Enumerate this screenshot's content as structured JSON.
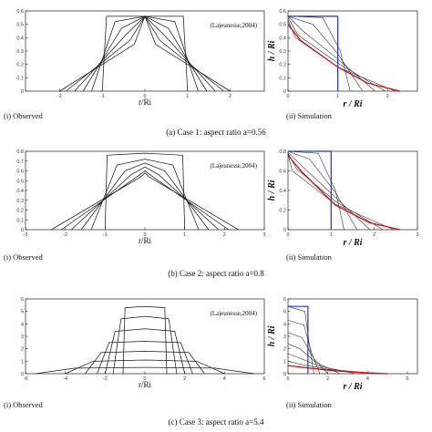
{
  "chart_data": [
    {
      "type": "line",
      "case": "case1",
      "panel": "observed",
      "xlabel": "r/Ri",
      "ylabel": "",
      "xlim": [
        -2.8,
        2.8
      ],
      "ylim": [
        0,
        0.6
      ],
      "xticks": [
        -2,
        -1,
        0,
        1,
        2
      ],
      "xticklabels": [
        "-2",
        "-1",
        "0",
        "1",
        "2"
      ],
      "yticks": [
        0,
        0.1,
        0.2,
        0.3,
        0.4,
        0.5,
        0.6
      ],
      "yticklabels": [
        "0",
        "0.1",
        "0.2",
        "0.3",
        "0.4",
        "0.5",
        "0.6"
      ],
      "annotation": "(Lajeunesse,2004)",
      "panel_label": "(i) Observed",
      "series": [
        {
          "x": [
            -1.0,
            -0.9,
            0,
            0.9,
            1.0
          ],
          "y": [
            0,
            0.56,
            0.56,
            0.56,
            0
          ]
        },
        {
          "x": [
            -1.25,
            -0.7,
            0,
            0.7,
            1.25
          ],
          "y": [
            0,
            0.52,
            0.56,
            0.52,
            0
          ]
        },
        {
          "x": [
            -1.45,
            -0.55,
            0,
            0.55,
            1.45
          ],
          "y": [
            0,
            0.47,
            0.56,
            0.47,
            0
          ]
        },
        {
          "x": [
            -1.65,
            -0.45,
            0,
            0.45,
            1.65
          ],
          "y": [
            0,
            0.42,
            0.56,
            0.42,
            0
          ]
        },
        {
          "x": [
            -1.85,
            -0.35,
            0,
            0.35,
            1.85
          ],
          "y": [
            0,
            0.38,
            0.56,
            0.38,
            0
          ]
        },
        {
          "x": [
            -2.0,
            -0.25,
            0,
            0.25,
            2.0
          ],
          "y": [
            0,
            0.35,
            0.56,
            0.35,
            0
          ]
        }
      ]
    },
    {
      "type": "line",
      "case": "case1",
      "panel": "simulation",
      "xlabel": "r / Ri",
      "ylabel": "h / Ri",
      "xlim": [
        0,
        2.6
      ],
      "ylim": [
        0,
        0.6
      ],
      "xticks": [
        0,
        1,
        2
      ],
      "xticklabels": [
        "0",
        "1",
        "2"
      ],
      "yticks": [
        0,
        0.1,
        0.2,
        0.3,
        0.4,
        0.5,
        0.6
      ],
      "yticklabels": [
        "0",
        "0.1",
        "0.2",
        "0.3",
        "0.4",
        "0.5",
        "0.6"
      ],
      "panel_label": "(ii) Simulation",
      "initial": {
        "x": [
          0,
          1,
          1
        ],
        "y": [
          0.56,
          0.56,
          0
        ]
      },
      "series": [
        {
          "x": [
            0,
            0.7,
            1.05,
            1.25
          ],
          "y": [
            0.56,
            0.55,
            0.3,
            0
          ]
        },
        {
          "x": [
            0,
            0.5,
            1.0,
            1.5
          ],
          "y": [
            0.56,
            0.5,
            0.28,
            0
          ]
        },
        {
          "x": [
            0,
            0.3,
            1.0,
            1.75
          ],
          "y": [
            0.56,
            0.45,
            0.24,
            0
          ]
        },
        {
          "x": [
            0,
            0.2,
            1.0,
            1.95
          ],
          "y": [
            0.55,
            0.42,
            0.21,
            0
          ]
        },
        {
          "x": [
            0,
            0.15,
            1.0,
            2.15
          ],
          "y": [
            0.53,
            0.4,
            0.18,
            0
          ]
        }
      ],
      "final": {
        "x": [
          0,
          0.25,
          1.0,
          1.6,
          2.25
        ],
        "y": [
          0.5,
          0.38,
          0.18,
          0.06,
          0
        ]
      }
    },
    {
      "type": "line",
      "case": "case2",
      "panel": "observed",
      "xlabel": "r/Ri",
      "ylabel": "",
      "xlim": [
        -3,
        3
      ],
      "ylim": [
        0,
        0.8
      ],
      "xticks": [
        -3,
        -2,
        -1,
        0,
        1,
        2,
        3
      ],
      "xticklabels": [
        "-3",
        "-2",
        "-1",
        "0",
        "1",
        "2",
        "3"
      ],
      "yticks": [
        0,
        0.1,
        0.2,
        0.3,
        0.4,
        0.5,
        0.6,
        0.7,
        0.8
      ],
      "yticklabels": [
        "0",
        "0.1",
        "0.2",
        "0.3",
        "0.4",
        "0.5",
        "0.6",
        "0.7",
        "0.8"
      ],
      "annotation": "(Lajeunesse,2004)",
      "panel_label": "(i) Observed",
      "series": [
        {
          "x": [
            -1.0,
            -0.95,
            0,
            0.95,
            1.0
          ],
          "y": [
            0,
            0.76,
            0.78,
            0.76,
            0
          ]
        },
        {
          "x": [
            -1.35,
            -0.7,
            0,
            0.7,
            1.35
          ],
          "y": [
            0,
            0.66,
            0.72,
            0.66,
            0
          ]
        },
        {
          "x": [
            -1.6,
            -0.5,
            0,
            0.5,
            1.6
          ],
          "y": [
            0,
            0.6,
            0.68,
            0.6,
            0
          ]
        },
        {
          "x": [
            -1.85,
            -0.35,
            0,
            0.35,
            1.85
          ],
          "y": [
            0,
            0.56,
            0.64,
            0.56,
            0
          ]
        },
        {
          "x": [
            -2.1,
            -0.2,
            0,
            0.2,
            2.1
          ],
          "y": [
            0,
            0.54,
            0.6,
            0.54,
            0
          ]
        },
        {
          "x": [
            -2.35,
            -0.1,
            0,
            0.1,
            2.35
          ],
          "y": [
            0,
            0.54,
            0.58,
            0.54,
            0
          ]
        }
      ]
    },
    {
      "type": "line",
      "case": "case2",
      "panel": "simulation",
      "xlabel": "r / Ri",
      "ylabel": "h / Ri",
      "xlim": [
        0,
        3
      ],
      "ylim": [
        0,
        0.8
      ],
      "xticks": [
        0,
        1,
        2,
        3
      ],
      "xticklabels": [
        "0",
        "1",
        "2",
        "3"
      ],
      "yticks": [
        0,
        0.2,
        0.4,
        0.6,
        0.8
      ],
      "yticklabels": [
        "0",
        "0.2",
        "0.4",
        "0.6",
        "0.8"
      ],
      "panel_label": "(ii) Simulation",
      "initial": {
        "x": [
          0,
          1,
          1
        ],
        "y": [
          0.8,
          0.8,
          0
        ]
      },
      "series": [
        {
          "x": [
            0,
            0.7,
            1.1,
            1.3
          ],
          "y": [
            0.8,
            0.78,
            0.4,
            0
          ]
        },
        {
          "x": [
            0,
            0.5,
            1.1,
            1.6
          ],
          "y": [
            0.8,
            0.72,
            0.38,
            0
          ]
        },
        {
          "x": [
            0,
            0.3,
            1.1,
            1.9
          ],
          "y": [
            0.79,
            0.66,
            0.33,
            0
          ]
        },
        {
          "x": [
            0,
            0.2,
            1.1,
            2.2
          ],
          "y": [
            0.78,
            0.62,
            0.29,
            0
          ]
        },
        {
          "x": [
            0,
            0.1,
            1.1,
            2.45
          ],
          "y": [
            0.77,
            0.6,
            0.26,
            0
          ]
        }
      ],
      "final": {
        "x": [
          0,
          0.3,
          1.1,
          1.9,
          2.6
        ],
        "y": [
          0.76,
          0.6,
          0.25,
          0.07,
          0
        ]
      }
    },
    {
      "type": "line",
      "case": "case3",
      "panel": "observed",
      "xlabel": "r/Ri",
      "ylabel": "",
      "xlim": [
        -6,
        6
      ],
      "ylim": [
        0,
        6
      ],
      "xticks": [
        -6,
        -4,
        -2,
        0,
        2,
        4,
        6
      ],
      "xticklabels": [
        "-6",
        "-4",
        "-2",
        "0",
        "2",
        "4",
        "6"
      ],
      "yticks": [
        0,
        1,
        2,
        3,
        4,
        5,
        6
      ],
      "yticklabels": [
        "0",
        "1",
        "2",
        "3",
        "4",
        "5",
        "6"
      ],
      "annotation": "(Lajeunesse,2004)",
      "panel_label": "(i) Observed",
      "series": [
        {
          "x": [
            -1.1,
            -1.0,
            0,
            1.0,
            1.1
          ],
          "y": [
            0,
            5.3,
            5.4,
            5.3,
            0
          ]
        },
        {
          "x": [
            -1.6,
            -1.2,
            0,
            1.2,
            1.6
          ],
          "y": [
            0,
            4.4,
            4.6,
            4.4,
            0
          ]
        },
        {
          "x": [
            -2.0,
            -1.5,
            0,
            1.5,
            2.0
          ],
          "y": [
            0,
            3.4,
            3.6,
            3.4,
            0
          ]
        },
        {
          "x": [
            -2.4,
            -1.8,
            0,
            1.8,
            2.4
          ],
          "y": [
            0,
            2.5,
            2.6,
            2.5,
            0
          ]
        },
        {
          "x": [
            -3.0,
            -2.2,
            0,
            2.2,
            3.0
          ],
          "y": [
            0,
            1.7,
            1.8,
            1.7,
            0
          ]
        },
        {
          "x": [
            -4.0,
            -2.6,
            0,
            2.6,
            4.0
          ],
          "y": [
            0,
            1.0,
            1.1,
            1.0,
            0
          ]
        },
        {
          "x": [
            -5.5,
            -3.5,
            0,
            3.5,
            5.5
          ],
          "y": [
            0,
            0.45,
            0.5,
            0.45,
            0
          ]
        }
      ]
    },
    {
      "type": "line",
      "case": "case3",
      "panel": "simulation",
      "xlabel": "r / Ri",
      "ylabel": "h / Ri",
      "xlim": [
        0,
        6.5
      ],
      "ylim": [
        0,
        6
      ],
      "xticks": [
        0,
        2,
        4,
        6
      ],
      "xticklabels": [
        "0",
        "2",
        "4",
        "6"
      ],
      "yticks": [
        0,
        1,
        2,
        3,
        4,
        5,
        6
      ],
      "yticklabels": [
        "0",
        "1",
        "2",
        "3",
        "4",
        "5",
        "6"
      ],
      "panel_label": "(ii) Simulation",
      "initial": {
        "x": [
          0,
          1,
          1
        ],
        "y": [
          5.4,
          5.4,
          0
        ]
      },
      "series": [
        {
          "x": [
            0,
            0.85,
            1.1,
            1.3
          ],
          "y": [
            5.4,
            5.0,
            2.0,
            0
          ]
        },
        {
          "x": [
            0,
            0.8,
            1.2,
            1.6
          ],
          "y": [
            4.3,
            3.9,
            1.6,
            0
          ]
        },
        {
          "x": [
            0,
            0.7,
            1.3,
            2.0
          ],
          "y": [
            3.3,
            2.9,
            1.2,
            0
          ]
        },
        {
          "x": [
            0,
            0.6,
            1.4,
            2.6
          ],
          "y": [
            2.4,
            2.0,
            0.9,
            0
          ]
        },
        {
          "x": [
            0,
            0.5,
            1.6,
            3.4
          ],
          "y": [
            1.6,
            1.3,
            0.6,
            0
          ]
        },
        {
          "x": [
            0,
            0.5,
            2.0,
            4.6
          ],
          "y": [
            1.0,
            0.8,
            0.35,
            0
          ]
        }
      ],
      "final": {
        "x": [
          0,
          0.8,
          2.2,
          3.6,
          5.0
        ],
        "y": [
          0.65,
          0.5,
          0.25,
          0.1,
          0
        ]
      }
    }
  ],
  "captions": {
    "case1": "(a) Case 1: aspect ratio a=0.56",
    "case2": "(b) Case 2: aspect ratio a=0.8",
    "case3": "(c) Case 3: aspect ratio a=5.4"
  },
  "colors": {
    "observed": "#1a1a1a",
    "simulation": "#333333",
    "initial": "#2233cc",
    "final": "#cc1111"
  }
}
